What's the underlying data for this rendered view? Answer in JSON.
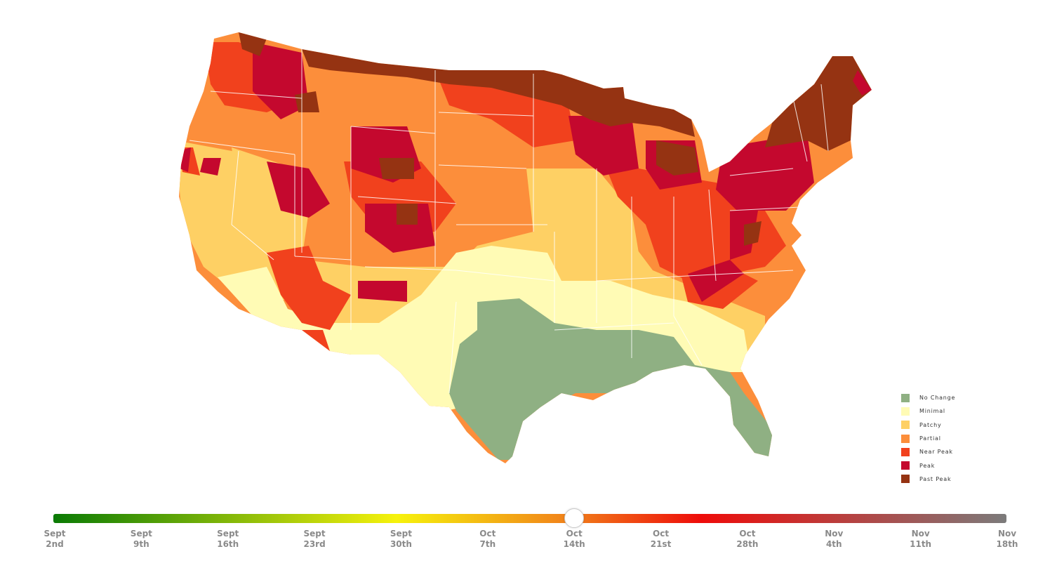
{
  "legend": {
    "items": [
      {
        "label": "No Change",
        "color": "#8fb083"
      },
      {
        "label": "Minimal",
        "color": "#fffbb5"
      },
      {
        "label": "Patchy",
        "color": "#fed064"
      },
      {
        "label": "Partial",
        "color": "#fc8e3b"
      },
      {
        "label": "Near Peak",
        "color": "#f1411d"
      },
      {
        "label": "Peak",
        "color": "#c4082e"
      },
      {
        "label": "Past Peak",
        "color": "#953312"
      }
    ]
  },
  "timeline": {
    "gradient": [
      "#0a7a05",
      "#f6f20c",
      "#f1811a",
      "#ee0c0a",
      "#7b7b7b"
    ],
    "selected_index": 6,
    "ticks": [
      {
        "month": "Sept",
        "day": "2nd"
      },
      {
        "month": "Sept",
        "day": "9th"
      },
      {
        "month": "Sept",
        "day": "16th"
      },
      {
        "month": "Sept",
        "day": "23rd"
      },
      {
        "month": "Sept",
        "day": "30th"
      },
      {
        "month": "Oct",
        "day": "7th"
      },
      {
        "month": "Oct",
        "day": "14th"
      },
      {
        "month": "Oct",
        "day": "21st"
      },
      {
        "month": "Oct",
        "day": "28th"
      },
      {
        "month": "Nov",
        "day": "4th"
      },
      {
        "month": "Nov",
        "day": "11th"
      },
      {
        "month": "Nov",
        "day": "18th"
      }
    ]
  },
  "map": {
    "regions": [
      {
        "name": "texas-gulf-region",
        "status": "No Change"
      },
      {
        "name": "southern-plains-region",
        "status": "Minimal"
      },
      {
        "name": "southwest-region",
        "status": "Patchy"
      },
      {
        "name": "central-plains-region",
        "status": "Partial"
      },
      {
        "name": "mountain-region",
        "status": "Near Peak"
      },
      {
        "name": "great-lakes-region",
        "status": "Peak"
      },
      {
        "name": "northern-border-region",
        "status": "Past Peak"
      }
    ]
  }
}
